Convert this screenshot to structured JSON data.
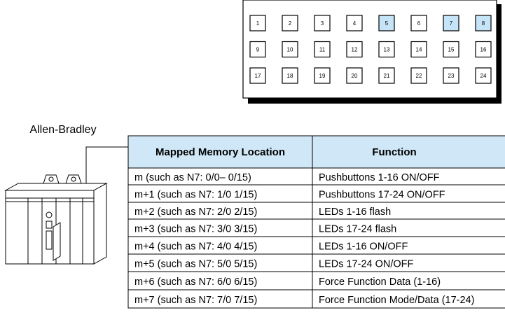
{
  "panel": {
    "buttons": [
      {
        "label": "1",
        "lit": false
      },
      {
        "label": "2",
        "lit": false
      },
      {
        "label": "3",
        "lit": false
      },
      {
        "label": "4",
        "lit": false
      },
      {
        "label": "5",
        "lit": true
      },
      {
        "label": "6",
        "lit": false
      },
      {
        "label": "7",
        "lit": true
      },
      {
        "label": "8",
        "lit": true
      },
      {
        "label": "9",
        "lit": false
      },
      {
        "label": "10",
        "lit": false
      },
      {
        "label": "11",
        "lit": false
      },
      {
        "label": "12",
        "lit": false
      },
      {
        "label": "13",
        "lit": false
      },
      {
        "label": "14",
        "lit": false
      },
      {
        "label": "15",
        "lit": false
      },
      {
        "label": "16",
        "lit": false
      },
      {
        "label": "17",
        "lit": false
      },
      {
        "label": "18",
        "lit": false
      },
      {
        "label": "19",
        "lit": false
      },
      {
        "label": "20",
        "lit": false
      },
      {
        "label": "21",
        "lit": false
      },
      {
        "label": "22",
        "lit": false
      },
      {
        "label": "23",
        "lit": false
      },
      {
        "label": "24",
        "lit": false
      }
    ],
    "lit_color": "#c6e4f7"
  },
  "plc": {
    "label": "Allen-Bradley"
  },
  "table": {
    "header": [
      "Mapped Memory Location",
      "Function"
    ],
    "header_color": "#cfe7f6",
    "rows": [
      [
        "m  (such as N7: 0/0– 0/15)",
        "Pushbuttons 1-16 ON/OFF"
      ],
      [
        "m+1  (such as N7: 1/0  1/15)",
        "Pushbuttons 17-24 ON/OFF"
      ],
      [
        "m+2  (such as N7: 2/0  2/15)",
        "LEDs 1-16 flash"
      ],
      [
        "m+3  (such as N7: 3/0  3/15)",
        "LEDs 17-24 flash"
      ],
      [
        "m+4  (such as N7: 4/0  4/15)",
        "LEDs 1-16 ON/OFF"
      ],
      [
        "m+5  (such as N7: 5/0  5/15)",
        "LEDs 17-24 ON/OFF"
      ],
      [
        "m+6  (such as N7: 6/0  6/15)",
        "Force Function Data (1-16)"
      ],
      [
        "m+7  (such as N7: 7/0  7/15)",
        "Force Function Mode/Data (17-24)"
      ]
    ]
  }
}
